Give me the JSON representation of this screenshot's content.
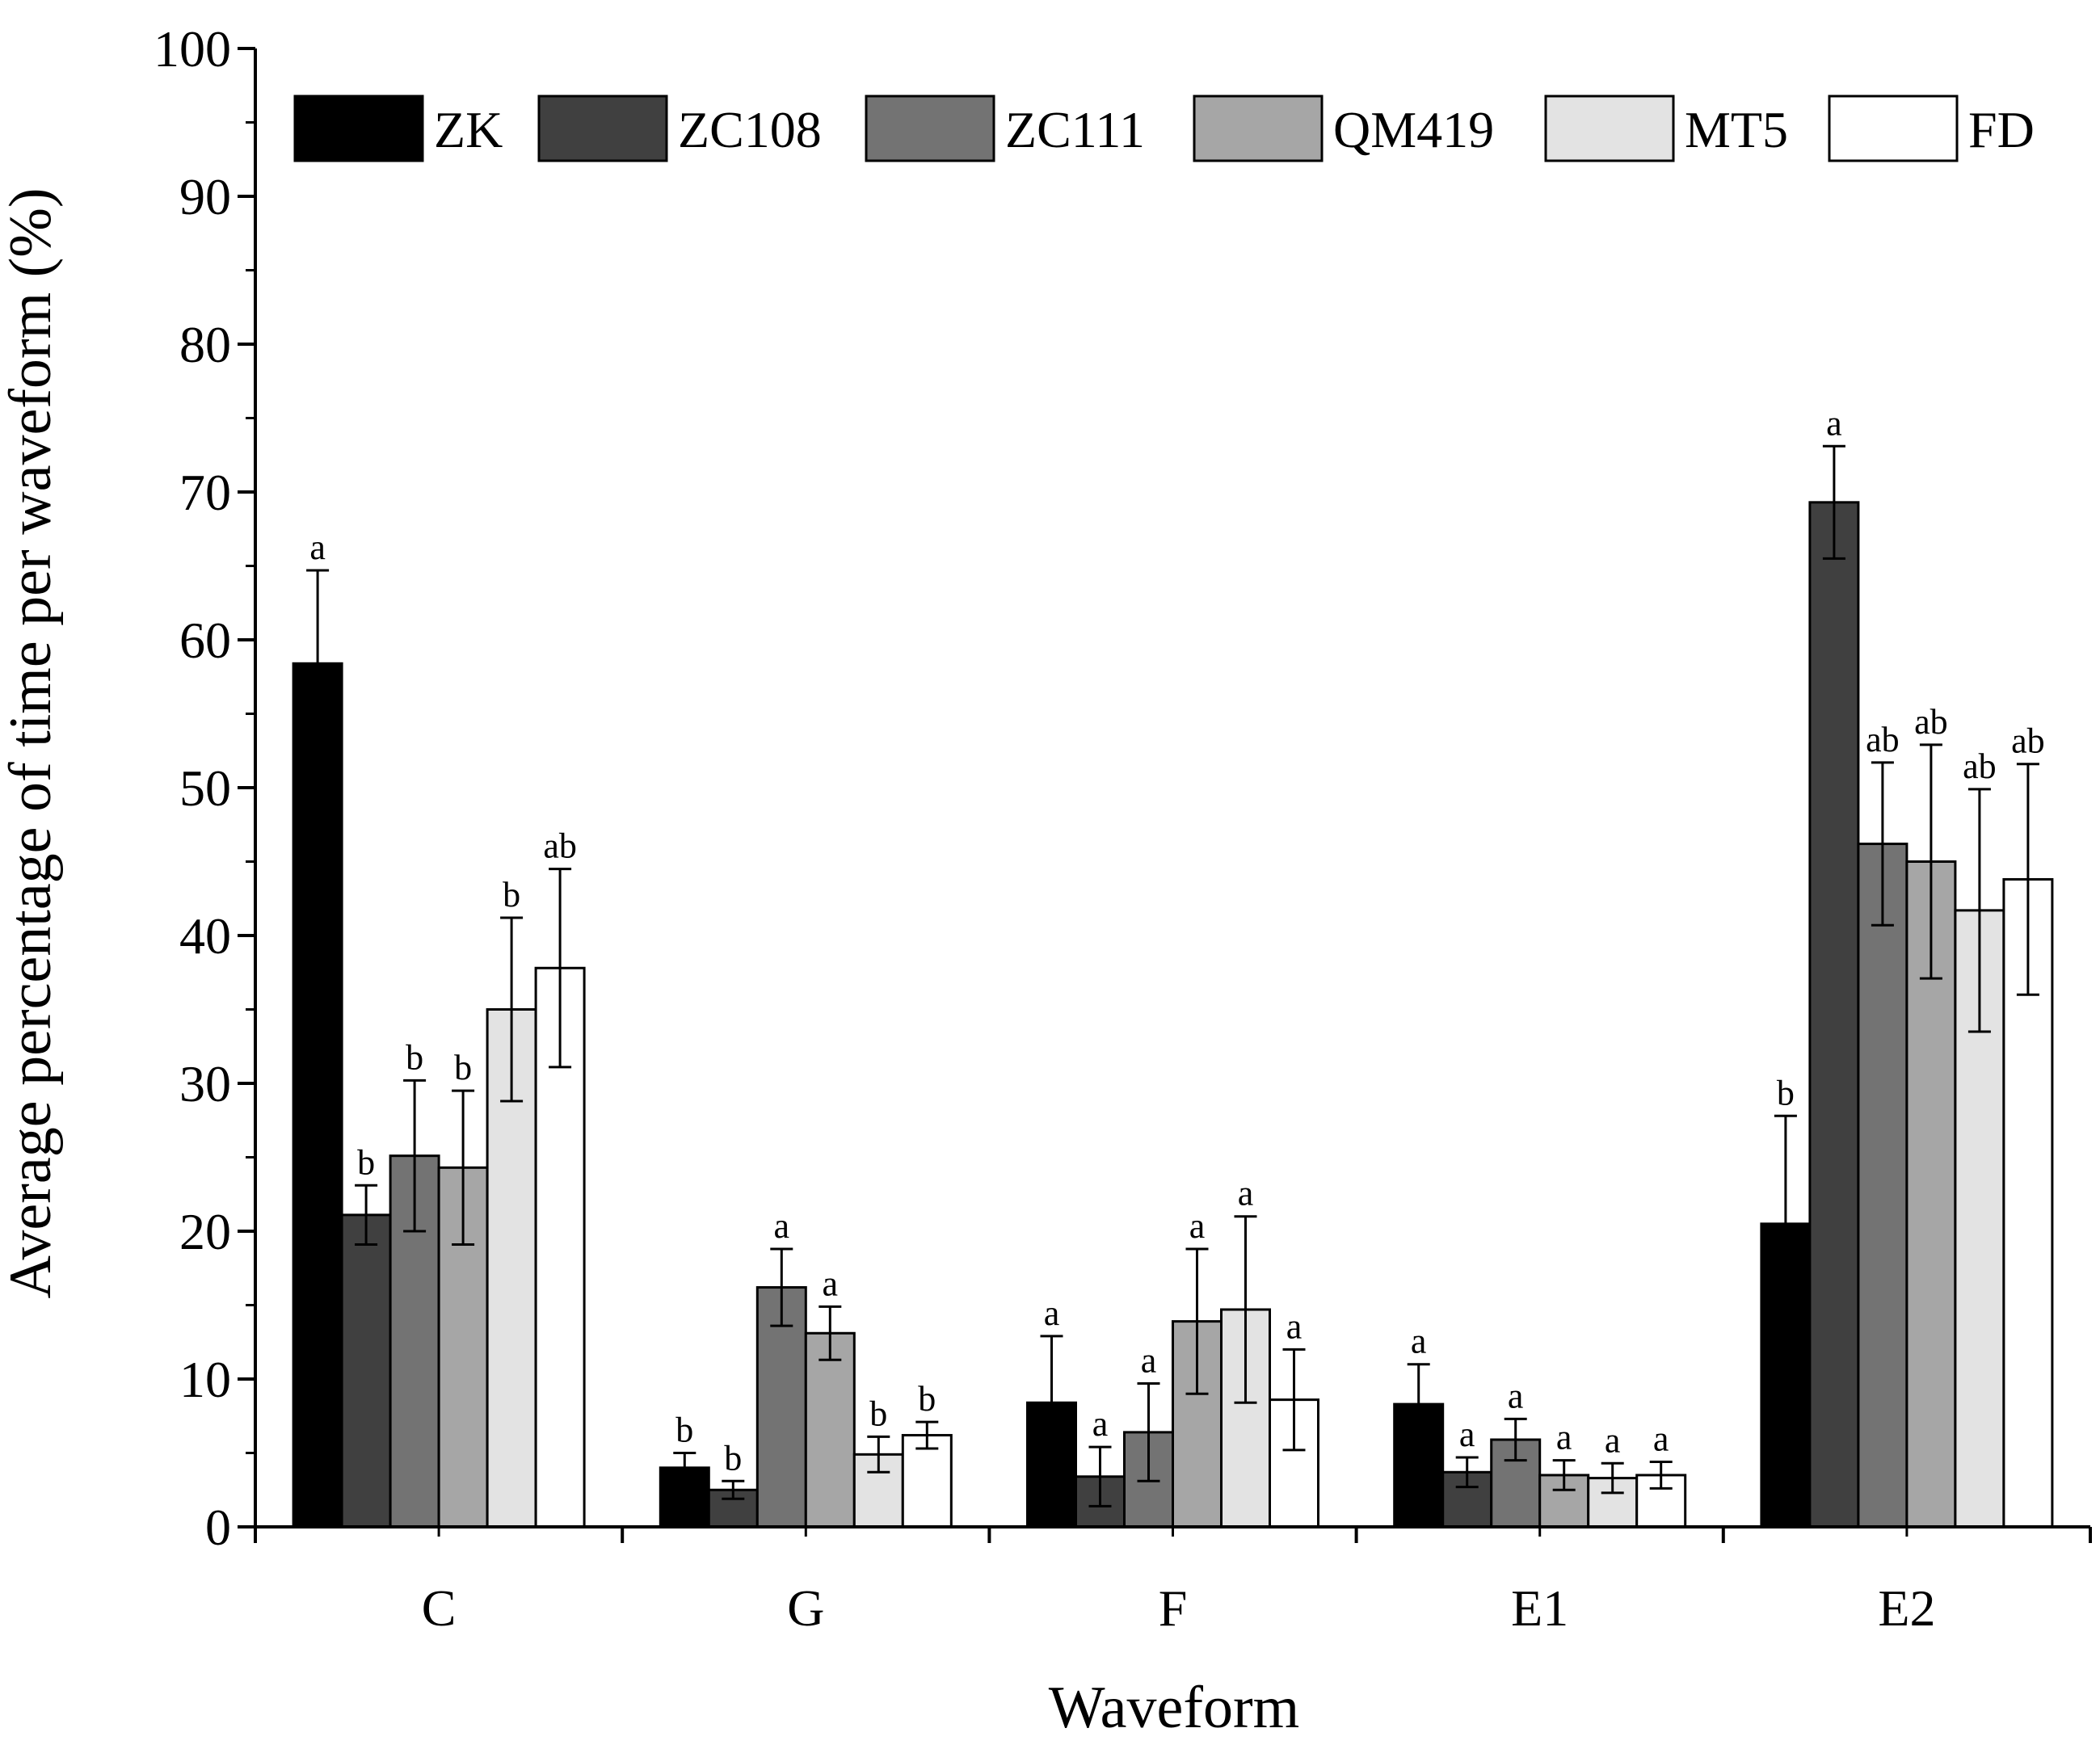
{
  "chart_data": {
    "type": "bar",
    "title": "",
    "xlabel": "Waveform",
    "ylabel": "Average percentage of time per waveform (%)",
    "ylim": [
      0,
      100
    ],
    "yticks": [
      "0",
      "10",
      "20",
      "30",
      "40",
      "50",
      "60",
      "70",
      "80",
      "90",
      "100"
    ],
    "categories": [
      "C",
      "G",
      "F",
      "E1",
      "E2"
    ],
    "legend_position": "top",
    "series": [
      {
        "name": "ZK",
        "color": "#000000",
        "values": [
          58.4,
          4.0,
          8.4,
          8.3,
          20.5
        ],
        "errors": [
          6.3,
          1.0,
          4.5,
          2.7,
          7.3
        ],
        "labels": [
          "a",
          "b",
          "a",
          "a",
          "b"
        ]
      },
      {
        "name": "ZC108",
        "color": "#404040",
        "values": [
          21.1,
          2.5,
          3.4,
          3.7,
          69.3
        ],
        "errors": [
          2.0,
          0.6,
          2.0,
          1.0,
          3.8
        ],
        "labels": [
          "b",
          "b",
          "a",
          "a",
          "a"
        ]
      },
      {
        "name": "ZC111",
        "color": "#737373",
        "values": [
          25.1,
          16.2,
          6.4,
          5.9,
          46.2
        ],
        "errors": [
          5.1,
          2.6,
          3.3,
          1.4,
          5.5
        ],
        "labels": [
          "b",
          "a",
          "a",
          "a",
          "ab"
        ]
      },
      {
        "name": "QM419",
        "color": "#a6a6a6",
        "values": [
          24.3,
          13.1,
          13.9,
          3.5,
          45.0
        ],
        "errors": [
          5.2,
          1.8,
          4.9,
          1.0,
          7.9
        ],
        "labels": [
          "b",
          "a",
          "a",
          "a",
          "ab"
        ]
      },
      {
        "name": "MT5",
        "color": "#e3e3e3",
        "values": [
          35.0,
          4.9,
          14.7,
          3.3,
          41.7
        ],
        "errors": [
          6.2,
          1.2,
          6.3,
          1.0,
          8.2
        ],
        "labels": [
          "b",
          "b",
          "a",
          "a",
          "ab"
        ]
      },
      {
        "name": "FD",
        "color": "#ffffff",
        "values": [
          37.8,
          6.2,
          8.6,
          3.5,
          43.8
        ],
        "errors": [
          6.7,
          0.9,
          3.4,
          0.9,
          7.8
        ],
        "labels": [
          "ab",
          "b",
          "a",
          "a",
          "ab"
        ]
      }
    ]
  }
}
